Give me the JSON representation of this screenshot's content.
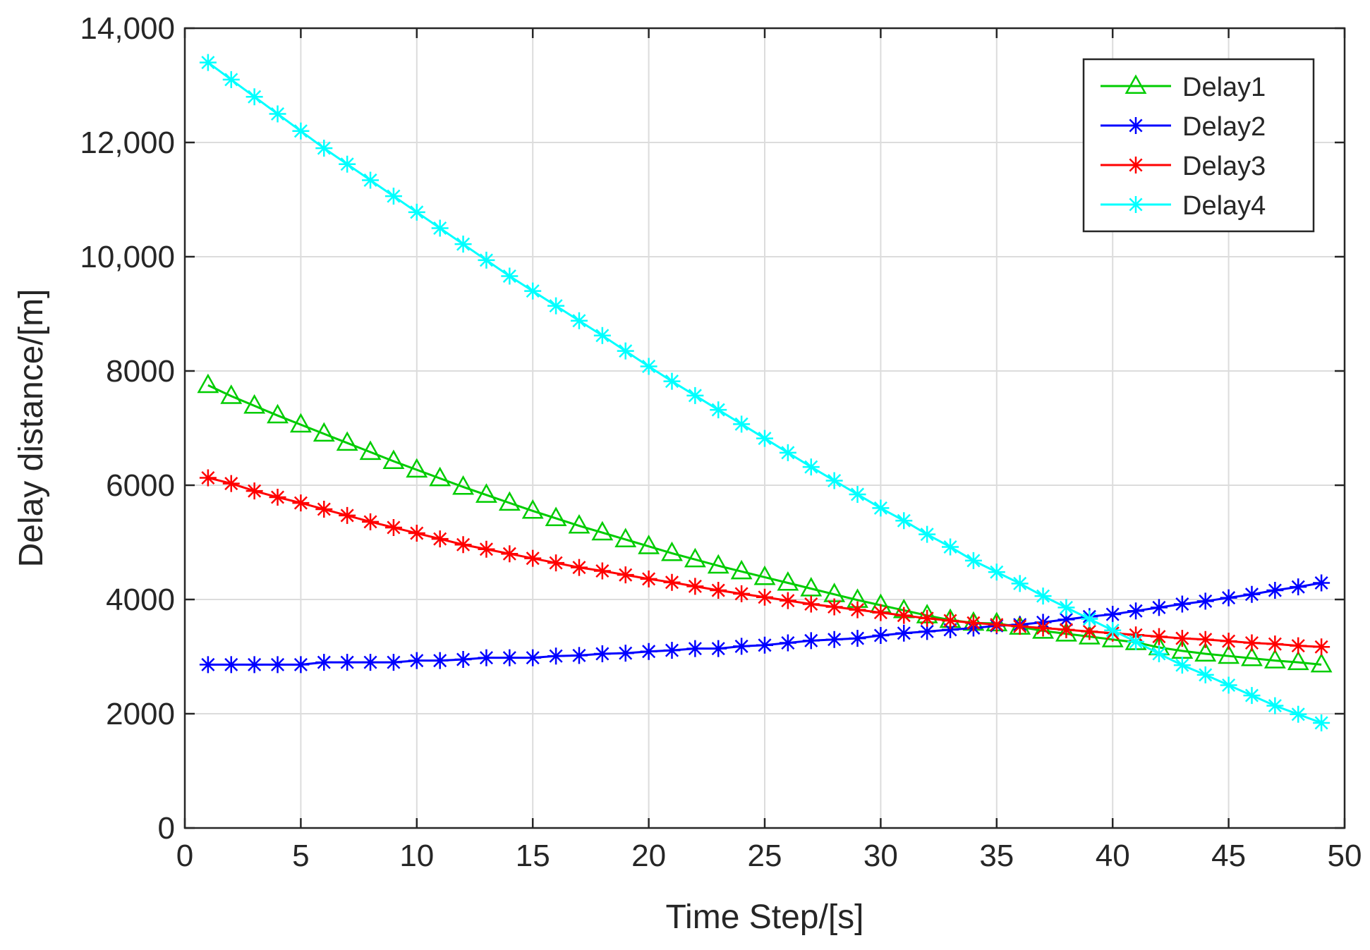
{
  "chart_data": {
    "type": "line",
    "title": "",
    "xlabel": "Time Step/[s]",
    "ylabel": "Delay distance/[m]",
    "xlim": [
      0,
      50
    ],
    "ylim": [
      0,
      14000
    ],
    "grid": true,
    "legend_position": "top-right",
    "x_ticks": [
      0,
      5,
      10,
      15,
      20,
      25,
      30,
      35,
      40,
      45,
      50
    ],
    "x_tick_labels": [
      "0",
      "5",
      "10",
      "15",
      "20",
      "25",
      "30",
      "35",
      "40",
      "45",
      "50"
    ],
    "y_ticks": [
      0,
      2000,
      4000,
      6000,
      8000,
      10000,
      12000,
      14000
    ],
    "y_tick_labels": [
      "0",
      "2000",
      "4000",
      "6000",
      "8000",
      "10,000",
      "12,000",
      "14,000"
    ],
    "x": [
      1,
      2,
      3,
      4,
      5,
      6,
      7,
      8,
      9,
      10,
      11,
      12,
      13,
      14,
      15,
      16,
      17,
      18,
      19,
      20,
      21,
      22,
      23,
      24,
      25,
      26,
      27,
      28,
      29,
      30,
      31,
      32,
      33,
      34,
      35,
      36,
      37,
      38,
      39,
      40,
      41,
      42,
      43,
      44,
      45,
      46,
      47,
      48,
      49
    ],
    "series": [
      {
        "name": "Delay1",
        "color": "#00cc00",
        "marker": "triangle",
        "values": [
          7750,
          7560,
          7390,
          7220,
          7060,
          6900,
          6740,
          6580,
          6420,
          6270,
          6120,
          5970,
          5830,
          5690,
          5550,
          5420,
          5290,
          5170,
          5050,
          4930,
          4810,
          4700,
          4590,
          4490,
          4390,
          4290,
          4190,
          4090,
          3990,
          3900,
          3810,
          3720,
          3640,
          3590,
          3580,
          3520,
          3450,
          3400,
          3350,
          3300,
          3250,
          3160,
          3100,
          3050,
          3010,
          2970,
          2930,
          2900,
          2860
        ]
      },
      {
        "name": "Delay2",
        "color": "#0000ff",
        "marker": "asterisk",
        "values": [
          2860,
          2860,
          2860,
          2860,
          2860,
          2900,
          2900,
          2900,
          2900,
          2930,
          2930,
          2950,
          2980,
          2980,
          2980,
          3010,
          3020,
          3050,
          3060,
          3090,
          3110,
          3140,
          3140,
          3180,
          3200,
          3240,
          3280,
          3300,
          3320,
          3370,
          3410,
          3440,
          3470,
          3500,
          3540,
          3560,
          3600,
          3650,
          3700,
          3740,
          3800,
          3860,
          3920,
          3970,
          4030,
          4090,
          4160,
          4220,
          4290
        ]
      },
      {
        "name": "Delay3",
        "color": "#ff0000",
        "marker": "asterisk",
        "values": [
          6130,
          6030,
          5900,
          5790,
          5690,
          5580,
          5470,
          5360,
          5260,
          5160,
          5060,
          4960,
          4880,
          4800,
          4720,
          4640,
          4560,
          4500,
          4430,
          4360,
          4300,
          4230,
          4160,
          4100,
          4040,
          3980,
          3920,
          3870,
          3820,
          3770,
          3720,
          3670,
          3630,
          3590,
          3560,
          3530,
          3500,
          3470,
          3440,
          3410,
          3380,
          3350,
          3320,
          3300,
          3270,
          3240,
          3220,
          3190,
          3170
        ]
      },
      {
        "name": "Delay4",
        "color": "#00ffff",
        "marker": "asterisk",
        "values": [
          13400,
          13100,
          12800,
          12500,
          12200,
          11900,
          11620,
          11340,
          11060,
          10780,
          10500,
          10220,
          9940,
          9660,
          9400,
          9140,
          8880,
          8620,
          8350,
          8080,
          7820,
          7570,
          7320,
          7070,
          6820,
          6570,
          6320,
          6080,
          5840,
          5600,
          5380,
          5140,
          4920,
          4680,
          4480,
          4280,
          4060,
          3860,
          3660,
          3460,
          3260,
          3050,
          2850,
          2680,
          2500,
          2320,
          2140,
          1990,
          1840
        ]
      }
    ]
  }
}
